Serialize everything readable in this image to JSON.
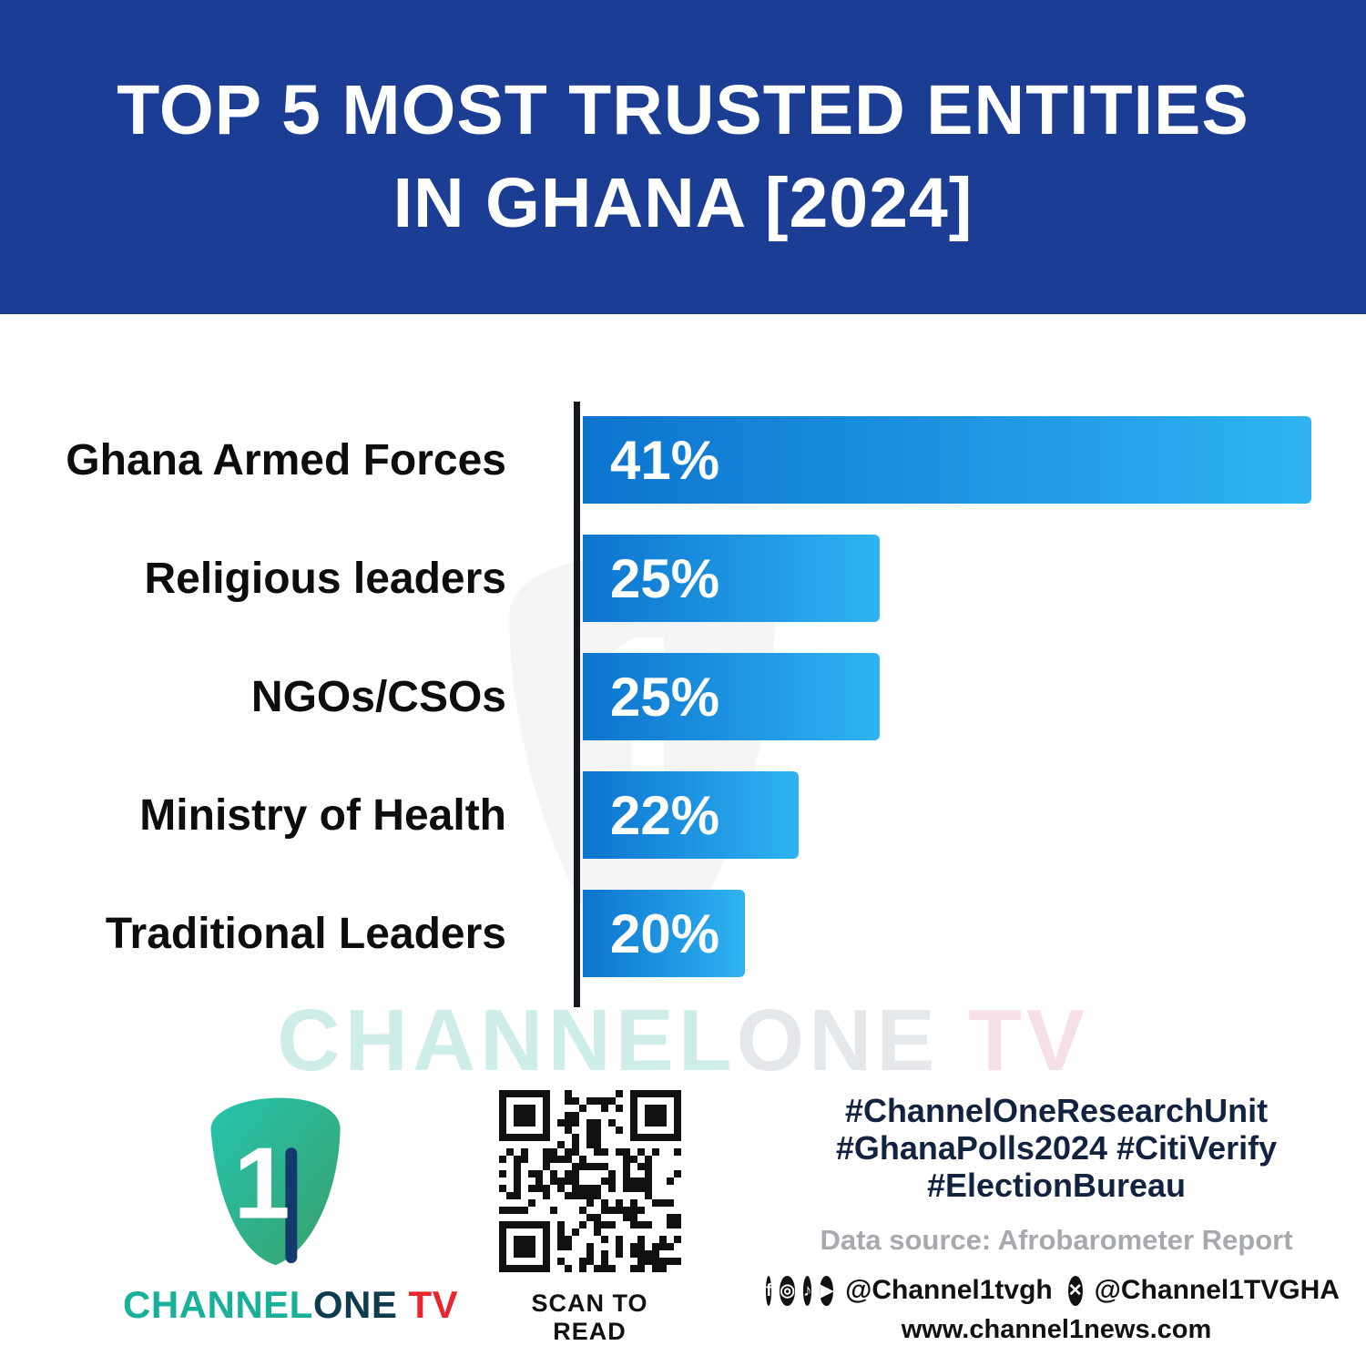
{
  "header": {
    "title_line1": "TOP 5 MOST TRUSTED ENTITIES",
    "title_line2": "IN GHANA [2024]"
  },
  "chart_data": {
    "type": "bar",
    "orientation": "horizontal",
    "title": "Top 5 Most Trusted Entities in Ghana [2024]",
    "categories": [
      "Ghana Armed Forces",
      "Religious leaders",
      "NGOs/CSOs",
      "Ministry of Health",
      "Traditional Leaders"
    ],
    "values": [
      41,
      25,
      25,
      22,
      20
    ],
    "value_labels": [
      "41%",
      "25%",
      "25%",
      "22%",
      "20%"
    ],
    "unit": "%",
    "xlabel": "",
    "ylabel": "",
    "xlim": [
      14,
      41
    ],
    "grid": false,
    "legend": "none",
    "bar_gradient": [
      "#0c74cf",
      "#2fb3f2"
    ]
  },
  "watermark": {
    "part1": "CHANNEL",
    "part2": "ONE",
    "part3": " TV"
  },
  "footer": {
    "logo": {
      "numeral": "1",
      "channel": "CHANNEL",
      "one": "ONE",
      "tv": " TV"
    },
    "qr_caption": "SCAN TO READ",
    "hashtags": [
      "#ChannelOneResearchUnit",
      "#GhanaPolls2024 #CitiVerify",
      "#ElectionBureau"
    ],
    "data_source": "Data source: Afrobarometer Report",
    "icon_glyphs": {
      "facebook": "f",
      "instagram": "◎",
      "tiktok": "♪",
      "youtube": "▶",
      "x": "✕"
    },
    "social": {
      "handle_main": "@Channel1tvgh",
      "handle_x": "@Channel1TVGHA"
    },
    "website": "www.channel1news.com"
  },
  "colors": {
    "banner": "#1c3d94",
    "bar_start": "#0c74cf",
    "bar_end": "#2fb3f2",
    "teal": "#19b09a",
    "red": "#e8262d",
    "hashtag": "#13233f"
  }
}
